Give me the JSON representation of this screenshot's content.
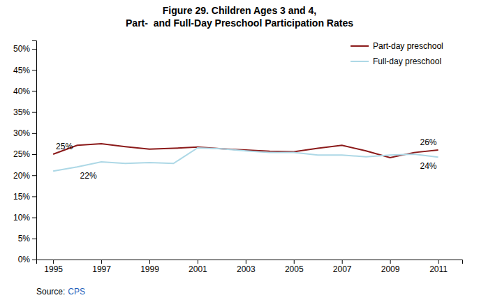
{
  "chart_data": {
    "type": "line",
    "title": "Figure 29. Children Ages 3 and 4,",
    "subtitle": "Part-  and Full-Day Preschool Participation Rates",
    "x": [
      1995,
      1996,
      1997,
      1998,
      1999,
      2000,
      2001,
      2002,
      2003,
      2004,
      2005,
      2006,
      2007,
      2008,
      2009,
      2010,
      2011
    ],
    "series": [
      {
        "name": "Part-day preschool",
        "color": "#8B1A1A",
        "values": [
          0.25,
          0.271,
          0.275,
          0.268,
          0.262,
          0.264,
          0.267,
          0.263,
          0.26,
          0.257,
          0.256,
          0.264,
          0.271,
          0.258,
          0.242,
          0.254,
          0.26
        ]
      },
      {
        "name": "Full-day preschool",
        "color": "#ADD8E6",
        "values": [
          0.21,
          0.22,
          0.232,
          0.228,
          0.23,
          0.228,
          0.265,
          0.263,
          0.258,
          0.254,
          0.254,
          0.248,
          0.248,
          0.244,
          0.248,
          0.25,
          0.243
        ]
      }
    ],
    "xlim": [
      1994.3,
      2012.0
    ],
    "xticks": [
      1995,
      1997,
      1999,
      2001,
      2003,
      2005,
      2007,
      2009,
      2011
    ],
    "ylim": [
      0.0,
      0.52
    ],
    "yticks": [
      {
        "value": 0.0,
        "label": "0%"
      },
      {
        "value": 0.05,
        "label": "5%"
      },
      {
        "value": 0.1,
        "label": "10%"
      },
      {
        "value": 0.15,
        "label": "15%"
      },
      {
        "value": 0.2,
        "label": "20%"
      },
      {
        "value": 0.25,
        "label": "25%"
      },
      {
        "value": 0.3,
        "label": "30%"
      },
      {
        "value": 0.35,
        "label": "35%"
      },
      {
        "value": 0.4,
        "label": "40%"
      },
      {
        "value": 0.45,
        "label": "45%"
      },
      {
        "value": 0.5,
        "label": "50%"
      }
    ],
    "annotations": [
      {
        "text": "25%",
        "x": 1995,
        "y": 0.25
      },
      {
        "text": "22%",
        "x": 1996,
        "y": 0.22
      },
      {
        "text": "26%",
        "x": 2011,
        "y": 0.26
      },
      {
        "text": "24%",
        "x": 2011,
        "y": 0.243
      }
    ],
    "source": [
      {
        "text": "Source:",
        "color": "#000000"
      },
      {
        "text": "CPS",
        "color": "#1F5FBB"
      }
    ],
    "grid": false,
    "legend": "upper right"
  }
}
